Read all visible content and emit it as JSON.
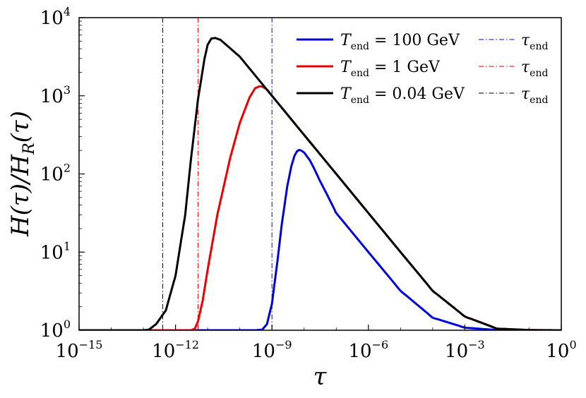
{
  "chart_data": {
    "type": "line",
    "title": "",
    "xlabel": "τ",
    "ylabel": "H(τ)/H_R(τ)",
    "xscale": "log",
    "yscale": "log",
    "xlim": [
      1e-15,
      1
    ],
    "ylim": [
      1,
      10000
    ],
    "x_ticks": [
      {
        "value": 1e-15,
        "base": "10",
        "exp": "−15"
      },
      {
        "value": 1e-12,
        "base": "10",
        "exp": "−12"
      },
      {
        "value": 1e-09,
        "base": "10",
        "exp": "−9"
      },
      {
        "value": 1e-06,
        "base": "10",
        "exp": "−6"
      },
      {
        "value": 0.001,
        "base": "10",
        "exp": "−3"
      },
      {
        "value": 1,
        "base": "10",
        "exp": "0"
      }
    ],
    "y_ticks": [
      {
        "value": 1,
        "base": "10",
        "exp": "0"
      },
      {
        "value": 10,
        "base": "10",
        "exp": "1"
      },
      {
        "value": 100,
        "base": "10",
        "exp": "2"
      },
      {
        "value": 1000,
        "base": "10",
        "exp": "3"
      },
      {
        "value": 10000,
        "base": "10",
        "exp": "4"
      }
    ],
    "legend_position": "top-right",
    "series": [
      {
        "name": "T_end = 100 GeV",
        "legend_main": "T",
        "legend_sub": "end",
        "legend_value": " = 100 GeV",
        "color": "#0000dd",
        "style": "solid",
        "points": [
          [
            1e-15,
            1
          ],
          [
            3e-10,
            1
          ],
          [
            5e-10,
            1.02
          ],
          [
            7e-10,
            1.2
          ],
          [
            1e-09,
            2.2
          ],
          [
            1.5e-09,
            8
          ],
          [
            2e-09,
            22
          ],
          [
            3e-09,
            70
          ],
          [
            4e-09,
            125
          ],
          [
            5e-09,
            170
          ],
          [
            6e-09,
            195
          ],
          [
            7e-09,
            203
          ],
          [
            8e-09,
            200
          ],
          [
            1e-08,
            188
          ],
          [
            1.5e-08,
            150
          ],
          [
            2e-08,
            120
          ],
          [
            3e-08,
            84
          ],
          [
            5e-08,
            56
          ],
          [
            1e-07,
            31.6
          ],
          [
            1e-06,
            10
          ],
          [
            1e-05,
            3.2
          ],
          [
            0.0001,
            1.45
          ],
          [
            0.001,
            1.08
          ],
          [
            0.01,
            1.005
          ],
          [
            1,
            1
          ]
        ]
      },
      {
        "name": "T_end = 1 GeV",
        "legend_main": "T",
        "legend_sub": "end",
        "legend_value": " = 1 GeV",
        "color": "#ee0000",
        "style": "solid",
        "points": [
          [
            1e-15,
            1
          ],
          [
            3e-12,
            1
          ],
          [
            4e-12,
            1.05
          ],
          [
            5e-12,
            1.3
          ],
          [
            7e-12,
            2.4
          ],
          [
            1e-11,
            6
          ],
          [
            2e-11,
            30
          ],
          [
            5e-11,
            160
          ],
          [
            1e-10,
            450
          ],
          [
            2e-10,
            950
          ],
          [
            3e-10,
            1250
          ],
          [
            4e-10,
            1320
          ],
          [
            5e-10,
            1310
          ],
          [
            7e-10,
            1200
          ],
          [
            1e-09,
            1000
          ],
          [
            1e-08,
            316
          ],
          [
            1e-07,
            100
          ],
          [
            1e-06,
            31.6
          ],
          [
            1e-05,
            10
          ],
          [
            0.0001,
            3.2
          ],
          [
            0.001,
            1.5
          ],
          [
            0.01,
            1.05
          ],
          [
            0.1,
            1.005
          ],
          [
            1,
            1
          ]
        ]
      },
      {
        "name": "T_end = 0.04 GeV",
        "legend_main": "T",
        "legend_sub": "end",
        "legend_value": " = 0.04 GeV",
        "color": "#000000",
        "style": "solid",
        "points": [
          [
            1e-15,
            1
          ],
          [
            1e-13,
            1
          ],
          [
            1.5e-13,
            1.02
          ],
          [
            2.5e-13,
            1.2
          ],
          [
            5e-13,
            1.8
          ],
          [
            1e-12,
            5
          ],
          [
            2e-12,
            30
          ],
          [
            3e-12,
            150
          ],
          [
            5e-12,
            900
          ],
          [
            8e-12,
            3000
          ],
          [
            1e-11,
            4500
          ],
          [
            1.3e-11,
            5400
          ],
          [
            1.7e-11,
            5500
          ],
          [
            2.5e-11,
            5200
          ],
          [
            4e-11,
            4400
          ],
          [
            1e-10,
            3160
          ],
          [
            1e-09,
            1000
          ],
          [
            1e-08,
            316
          ],
          [
            1e-07,
            100
          ],
          [
            1e-06,
            31.6
          ],
          [
            1e-05,
            10
          ],
          [
            0.0001,
            3.2
          ],
          [
            0.001,
            1.5
          ],
          [
            0.01,
            1.05
          ],
          [
            0.1,
            1.005
          ],
          [
            1,
            1
          ]
        ]
      }
    ],
    "vlines": [
      {
        "name": "τ_end (100 GeV)",
        "x": 1e-09,
        "color": "#0000dd",
        "style": "dashdot",
        "legend_main": "τ",
        "legend_sub": "end"
      },
      {
        "name": "τ_end (1 GeV)",
        "x": 5e-12,
        "color": "#ee0000",
        "style": "dashdot",
        "legend_main": "τ",
        "legend_sub": "end"
      },
      {
        "name": "τ_end (0.04 GeV)",
        "x": 4e-13,
        "color": "#000000",
        "style": "dashdot",
        "legend_main": "τ",
        "legend_sub": "end"
      }
    ]
  }
}
